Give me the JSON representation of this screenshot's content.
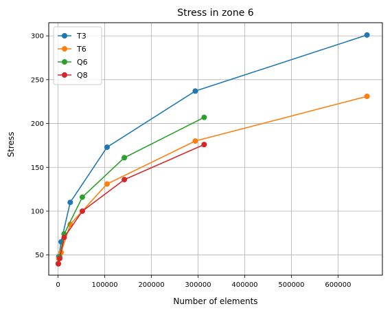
{
  "chart_data": {
    "type": "line",
    "title": "Stress in zone 6",
    "xlabel": "Number of elements",
    "ylabel": "Stress",
    "xlim": [
      -20000,
      695000
    ],
    "ylim": [
      27,
      315
    ],
    "x_ticks": [
      0,
      100000,
      200000,
      300000,
      400000,
      500000,
      600000
    ],
    "x_tick_labels": [
      "0",
      "100000",
      "200000",
      "300000",
      "400000",
      "500000",
      "600000"
    ],
    "y_ticks": [
      50,
      100,
      150,
      200,
      250,
      300
    ],
    "y_tick_labels": [
      "50",
      "100",
      "150",
      "200",
      "250",
      "300"
    ],
    "grid": true,
    "legend_position": "top-left",
    "series": [
      {
        "name": "T3",
        "color": "#1f77b4",
        "points": [
          [
            500,
            40
          ],
          [
            1500,
            48
          ],
          [
            6500,
            65
          ],
          [
            26000,
            110
          ],
          [
            105000,
            173
          ],
          [
            294000,
            237
          ],
          [
            662000,
            301
          ]
        ]
      },
      {
        "name": "T6",
        "color": "#ff7f0e",
        "points": [
          [
            500,
            40
          ],
          [
            1500,
            46
          ],
          [
            6500,
            53
          ],
          [
            26000,
            85
          ],
          [
            105000,
            131
          ],
          [
            294000,
            180
          ],
          [
            662000,
            231
          ]
        ]
      },
      {
        "name": "Q6",
        "color": "#2ca02c",
        "points": [
          [
            500,
            40
          ],
          [
            3500,
            48
          ],
          [
            13000,
            74
          ],
          [
            52000,
            116
          ],
          [
            142000,
            161
          ],
          [
            313000,
            207
          ]
        ]
      },
      {
        "name": "Q8",
        "color": "#d62728",
        "points": [
          [
            500,
            40
          ],
          [
            3500,
            46
          ],
          [
            13000,
            70
          ],
          [
            52000,
            100
          ],
          [
            142000,
            136
          ],
          [
            313000,
            176
          ]
        ]
      }
    ]
  }
}
